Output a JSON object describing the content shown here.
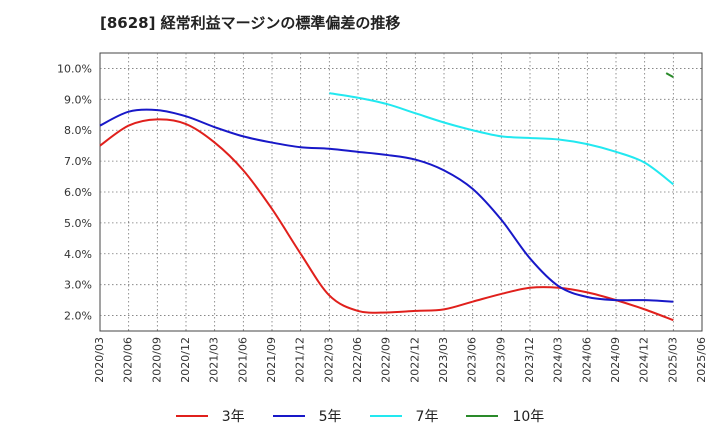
{
  "chart_data": {
    "type": "line",
    "title": "[8628]  経常利益マージンの標準偏差の推移",
    "xlabel": "",
    "ylabel": "",
    "x": [
      "2020/03",
      "2020/06",
      "2020/09",
      "2020/12",
      "2021/03",
      "2021/06",
      "2021/09",
      "2021/12",
      "2022/03",
      "2022/06",
      "2022/09",
      "2022/12",
      "2023/03",
      "2023/06",
      "2023/09",
      "2023/12",
      "2024/03",
      "2024/06",
      "2024/09",
      "2024/12",
      "2025/03",
      "2025/06"
    ],
    "y_ticks": [
      2.0,
      3.0,
      4.0,
      5.0,
      6.0,
      7.0,
      8.0,
      9.0,
      10.0
    ],
    "y_tick_format": "%",
    "ylim": [
      1.5,
      10.5
    ],
    "grid": true,
    "legend_position": "bottom",
    "series": [
      {
        "name": "3年",
        "color": "#e0201c",
        "values": [
          7.5,
          8.15,
          8.35,
          8.2,
          7.6,
          6.7,
          5.45,
          4.0,
          2.65,
          2.15,
          2.1,
          2.15,
          2.2,
          2.45,
          2.7,
          2.9,
          2.9,
          2.75,
          2.5,
          2.2,
          1.85,
          null
        ]
      },
      {
        "name": "5年",
        "color": "#1818c8",
        "values": [
          8.15,
          8.6,
          8.65,
          8.45,
          8.1,
          7.8,
          7.6,
          7.45,
          7.4,
          7.3,
          7.2,
          7.05,
          6.7,
          6.1,
          5.1,
          3.85,
          2.95,
          2.6,
          2.5,
          2.5,
          2.45,
          null
        ]
      },
      {
        "name": "7年",
        "color": "#22e8f0",
        "values": [
          null,
          null,
          null,
          null,
          null,
          null,
          null,
          null,
          9.2,
          9.05,
          8.85,
          8.55,
          8.25,
          8.0,
          7.8,
          7.75,
          7.7,
          7.55,
          7.3,
          6.95,
          6.25,
          null
        ]
      },
      {
        "name": "10年",
        "color": "#2a8a2a",
        "values": [
          null,
          null,
          null,
          null,
          null,
          null,
          null,
          null,
          null,
          null,
          null,
          null,
          null,
          null,
          null,
          null,
          null,
          null,
          null,
          null,
          9.85,
          null
        ],
        "extra_points": [
          [
            19.75,
            9.85
          ],
          [
            20,
            9.72
          ]
        ]
      }
    ]
  }
}
